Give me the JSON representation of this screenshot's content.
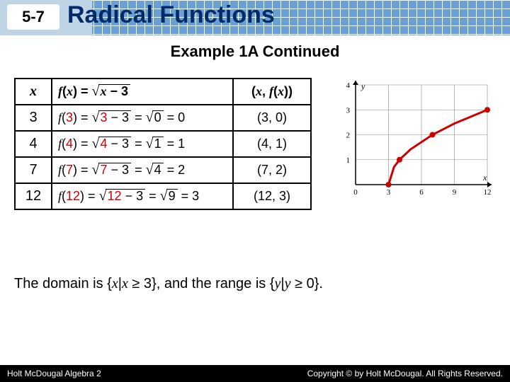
{
  "header": {
    "section": "5-7",
    "title": "Radical Functions",
    "grid_color": "#6aa0d6"
  },
  "subtitle": "Example 1A Continued",
  "table": {
    "headers": {
      "x": "x",
      "fx_def": "f(x) = √(x − 3)",
      "pair": "(x, f(x))"
    },
    "rows": [
      {
        "x": "3",
        "input": "3",
        "sub": "3 − 3",
        "mid": "0",
        "out": "0",
        "pair": "(3, 0)"
      },
      {
        "x": "4",
        "input": "4",
        "sub": "4 − 3",
        "mid": "1",
        "out": "1",
        "pair": "(4, 1)"
      },
      {
        "x": "7",
        "input": "7",
        "sub": "7 − 3",
        "mid": "4",
        "out": "2",
        "pair": "(7, 2)"
      },
      {
        "x": "12",
        "input": "12",
        "sub": "12 − 3",
        "mid": "9",
        "out": "3",
        "pair": "(12, 3)"
      }
    ]
  },
  "graph": {
    "xlim": [
      0,
      12
    ],
    "ylim": [
      0,
      4
    ],
    "xticks": [
      0,
      3,
      6,
      9,
      12
    ],
    "yticks": [
      0,
      1,
      2,
      3,
      4
    ],
    "xtick_labels": [
      "0",
      "3",
      "6",
      "9",
      "12"
    ],
    "ytick_labels": [
      "",
      "1",
      "2",
      "3",
      "4"
    ],
    "axis_label_x": "x",
    "axis_label_y": "y",
    "points": [
      [
        3,
        0
      ],
      [
        4,
        1
      ],
      [
        7,
        2
      ],
      [
        12,
        3
      ]
    ],
    "curve": [
      [
        3,
        0
      ],
      [
        3.5,
        0.707
      ],
      [
        4,
        1
      ],
      [
        5,
        1.414
      ],
      [
        7,
        2
      ],
      [
        9,
        2.449
      ],
      [
        12,
        3
      ]
    ],
    "curve_color": "#cc0000",
    "point_color": "#cc0000",
    "grid_color": "#888888",
    "axis_color": "#000000",
    "bg": "#ffffff",
    "tick_fontsize": 11,
    "curve_width": 3,
    "point_radius": 4
  },
  "bottom_text": {
    "prefix": "The domain is {",
    "dvar": "x",
    "dcond": "x ≥ 3",
    "mid": "}, and the range is {",
    "rvar": "y",
    "rcond": "y ≥ 0",
    "suffix": "}."
  },
  "footer": {
    "left": "Holt McDougal Algebra 2",
    "right": "Copyright © by Holt McDougal. All Rights Reserved."
  }
}
